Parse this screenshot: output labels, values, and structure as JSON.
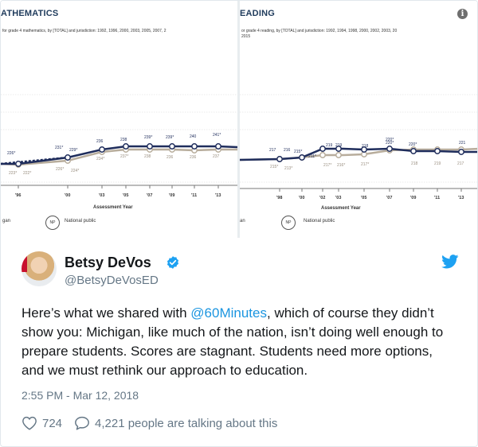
{
  "media": {
    "left_chart": {
      "title": "ATHEMATICS",
      "subtitle": "for grade 4 mathematics, by [TOTAL] and jurisdiction: 1992, 1996, 2000, 2003, 2005, 2007, 2",
      "axis_title": "Assessment Year",
      "legend_side": "gan",
      "legend_np": "NP",
      "legend_label": "National public",
      "x_ticks": [
        "'96",
        "'00",
        "'03",
        "'05",
        "'07",
        "'09",
        "'11",
        "'13"
      ],
      "upper_labels": [
        "226*",
        "231*",
        "229*",
        "236",
        "238",
        "239*",
        "239*",
        "240",
        "241*"
      ],
      "lower_labels": [
        "223*",
        "222*",
        "226*",
        "224*",
        "234*",
        "237*",
        "238",
        "236",
        "236",
        "237"
      ]
    },
    "right_chart": {
      "title": "EADING",
      "subtitle": "or grade 4 reading, by [TOTAL] and jurisdiction: 1992, 1994, 1998, 2000, 2002, 2003, 20",
      "subtitle2": "2015",
      "axis_title": "Assessment Year",
      "legend_side": "an",
      "legend_np": "NP",
      "legend_label": "National public",
      "x_ticks": [
        "'98",
        "'00",
        "'02",
        "'03",
        "'05",
        "'07",
        "'09",
        "'11",
        "'13"
      ],
      "upper_labels": [
        "217",
        "216",
        "215*",
        "211*",
        "219",
        "219",
        "218",
        "220*",
        "220*",
        "220*",
        "221"
      ],
      "lower_labels": [
        "215*",
        "213*",
        "217*",
        "216*",
        "217*",
        "218",
        "219",
        "217"
      ]
    }
  },
  "tweet": {
    "author_name": "Betsy DeVos",
    "author_handle": "@BetsyDeVosED",
    "text_before": "Here’s what we shared with ",
    "mention": "@60Minutes",
    "text_after": ", which of course they didn’t show you: Michigan, like much of the nation, isn’t doing well enough to prepare students. Scores are stagnant. Students need more options, and we must rethink our approach to education.",
    "timestamp": "2:55 PM - Mar 12, 2018",
    "likes": "724",
    "talking": "4,221 people are talking about this",
    "colors": {
      "link": "#1b95e0",
      "verified": "#1da1f2",
      "bird": "#1da1f2",
      "text": "#14171a",
      "muted": "#657786"
    }
  }
}
